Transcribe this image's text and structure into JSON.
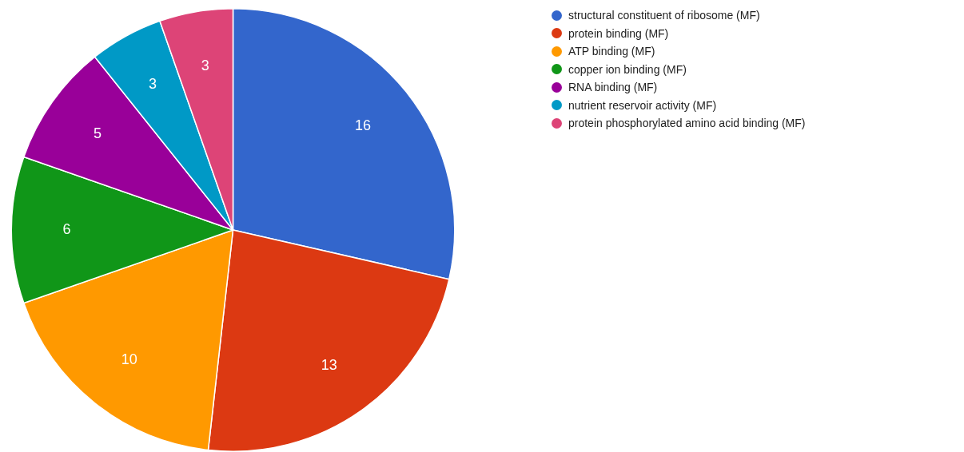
{
  "chart_data": {
    "type": "pie",
    "categories": [
      "structural constituent of ribosome (MF)",
      "protein binding (MF)",
      "ATP binding (MF)",
      "copper ion binding (MF)",
      "RNA binding (MF)",
      "nutrient reservoir activity (MF)",
      "protein phosphorylated amino acid binding (MF)"
    ],
    "values": [
      16,
      13,
      10,
      6,
      5,
      3,
      3
    ],
    "colors": [
      "#3366cc",
      "#dc3912",
      "#ff9900",
      "#109618",
      "#990099",
      "#0099c6",
      "#dd4477"
    ],
    "data_labels": true,
    "legend": "right"
  }
}
